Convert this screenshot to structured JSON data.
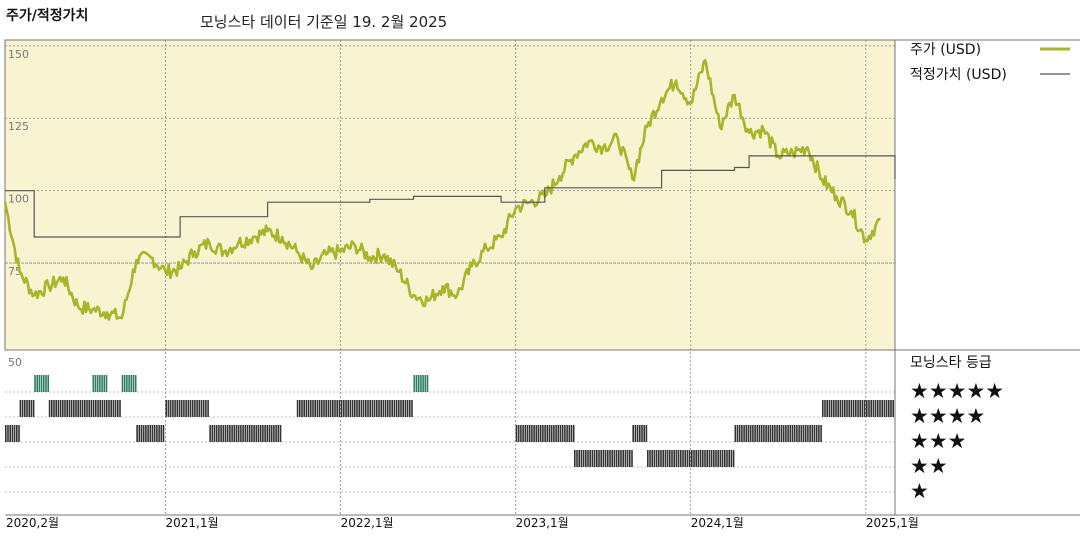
{
  "header": {
    "title": "주가/적정가치",
    "subtitle": "모닝스타 데이터 기준일 19. 2월 2025"
  },
  "legend": {
    "price_label": "주가 (USD)",
    "fair_label": "적정가치 (USD)",
    "rating_title": "모닝스타 등급",
    "star_rows": [
      "★★★★★",
      "★★★★",
      "★★★",
      "★★",
      "★"
    ]
  },
  "colors": {
    "price": "#a8b52a",
    "fair": "#555555",
    "panel_bg": "#f8f4d2",
    "five_star": "#2e7d5f",
    "bars": "#333333",
    "grid": "#888888"
  },
  "chart_data": {
    "type": "line",
    "y_axis": {
      "ticks": [
        150,
        125,
        100,
        75
      ],
      "lower_label": "50",
      "ylim": [
        45,
        152
      ]
    },
    "x_axis": {
      "ticks": [
        "2020,2월",
        "2021,1월",
        "2022,1월",
        "2023,1월",
        "2024,1월",
        "2025,1월"
      ],
      "tick_dates": [
        "2020-02",
        "2021-01",
        "2022-01",
        "2023-01",
        "2024-01",
        "2025-01"
      ],
      "xlim": [
        "2020-02",
        "2025-03"
      ]
    },
    "series": [
      {
        "name": "주가 (USD)",
        "points": [
          [
            "2020-02",
            96
          ],
          [
            "2020-03",
            72
          ],
          [
            "2020-04",
            64
          ],
          [
            "2020-05",
            67
          ],
          [
            "2020-06",
            70
          ],
          [
            "2020-07",
            60
          ],
          [
            "2020-08",
            59
          ],
          [
            "2020-09",
            58
          ],
          [
            "2020-10",
            56
          ],
          [
            "2020-11",
            76
          ],
          [
            "2020-12",
            77
          ],
          [
            "2021-01",
            72
          ],
          [
            "2021-02",
            73
          ],
          [
            "2021-03",
            79
          ],
          [
            "2021-04",
            82
          ],
          [
            "2021-05",
            79
          ],
          [
            "2021-06",
            82
          ],
          [
            "2021-07",
            84
          ],
          [
            "2021-08",
            86
          ],
          [
            "2021-09",
            84
          ],
          [
            "2021-10",
            79
          ],
          [
            "2021-11",
            73
          ],
          [
            "2021-12",
            78
          ],
          [
            "2022-01",
            79
          ],
          [
            "2022-02",
            81
          ],
          [
            "2022-03",
            77
          ],
          [
            "2022-04",
            78
          ],
          [
            "2022-05",
            72
          ],
          [
            "2022-06",
            64
          ],
          [
            "2022-07",
            62
          ],
          [
            "2022-08",
            67
          ],
          [
            "2022-09",
            64
          ],
          [
            "2022-10",
            74
          ],
          [
            "2022-11",
            80
          ],
          [
            "2022-12",
            84
          ],
          [
            "2023-01",
            94
          ],
          [
            "2023-02",
            96
          ],
          [
            "2023-03",
            98
          ],
          [
            "2023-04",
            105
          ],
          [
            "2023-05",
            112
          ],
          [
            "2023-06",
            117
          ],
          [
            "2023-07",
            115
          ],
          [
            "2023-08",
            118
          ],
          [
            "2023-09",
            104
          ],
          [
            "2023-10",
            122
          ],
          [
            "2023-11",
            132
          ],
          [
            "2023-12",
            138
          ],
          [
            "2024-01",
            130
          ],
          [
            "2024-02",
            145
          ],
          [
            "2024-03",
            122
          ],
          [
            "2024-04",
            133
          ],
          [
            "2024-05",
            120
          ],
          [
            "2024-06",
            121
          ],
          [
            "2024-07",
            112
          ],
          [
            "2024-08",
            113
          ],
          [
            "2024-09",
            115
          ],
          [
            "2024-10",
            104
          ],
          [
            "2024-11",
            98
          ],
          [
            "2024-12",
            93
          ],
          [
            "2025-01",
            83
          ],
          [
            "2025-02",
            90
          ]
        ]
      },
      {
        "name": "적정가치 (USD)",
        "points": [
          [
            "2020-02",
            100
          ],
          [
            "2020-04",
            84
          ],
          [
            "2021-01",
            84
          ],
          [
            "2021-02",
            91
          ],
          [
            "2021-08",
            96
          ],
          [
            "2022-03",
            97
          ],
          [
            "2022-06",
            98
          ],
          [
            "2022-12",
            96
          ],
          [
            "2023-03",
            101
          ],
          [
            "2023-11",
            107
          ],
          [
            "2024-04",
            108
          ],
          [
            "2024-05",
            112
          ],
          [
            "2024-12",
            112
          ],
          [
            "2025-03",
            104
          ]
        ]
      }
    ],
    "star_ratings": {
      "rows": [
        5,
        4,
        3,
        2,
        1
      ],
      "periods": [
        [
          "2020-02",
          "2020-03",
          3
        ],
        [
          "2020-03",
          "2020-04",
          4
        ],
        [
          "2020-04",
          "2020-05",
          5
        ],
        [
          "2020-05",
          "2020-10",
          4
        ],
        [
          "2020-08",
          "2020-09",
          5
        ],
        [
          "2020-10",
          "2020-11",
          5
        ],
        [
          "2020-11",
          "2021-01",
          3
        ],
        [
          "2021-01",
          "2021-04",
          4
        ],
        [
          "2021-04",
          "2021-09",
          3
        ],
        [
          "2021-10",
          "2022-06",
          4
        ],
        [
          "2022-06",
          "2022-07",
          5
        ],
        [
          "2023-01",
          "2023-05",
          3
        ],
        [
          "2023-05",
          "2023-09",
          2
        ],
        [
          "2023-09",
          "2023-10",
          3
        ],
        [
          "2023-10",
          "2024-04",
          2
        ],
        [
          "2024-04",
          "2024-10",
          3
        ],
        [
          "2024-10",
          "2025-03",
          4
        ]
      ]
    }
  }
}
